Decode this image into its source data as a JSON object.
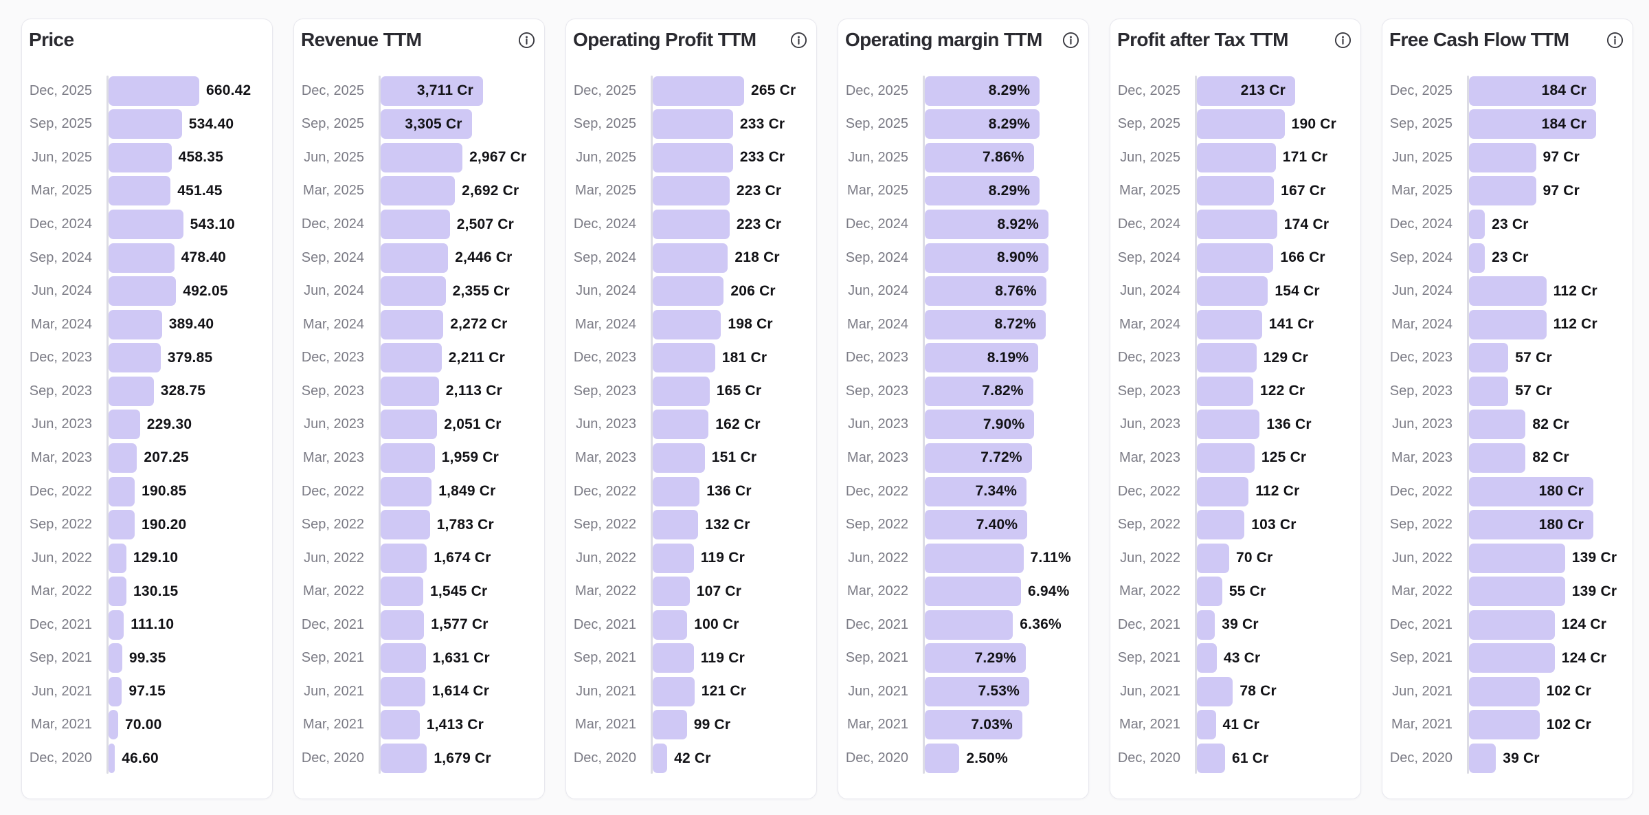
{
  "page": {
    "background": "#fafafb",
    "card_background": "#ffffff",
    "card_border": "#e8e8ee",
    "bar_color": "#cfc8f5",
    "axis_color": "#dcdce4",
    "period_color": "#7b7b85",
    "value_color": "#121216",
    "title_color": "#2a2a30",
    "info_icon": "info-circle"
  },
  "chart_data": [
    {
      "type": "bar",
      "orientation": "horizontal",
      "title": "Price",
      "has_info_icon": false,
      "unit": "",
      "xlim": [
        0,
        660.42
      ],
      "grid": false,
      "legend": "none",
      "categories": [
        "Dec, 2025",
        "Sep, 2025",
        "Jun, 2025",
        "Mar, 2025",
        "Dec, 2024",
        "Sep, 2024",
        "Jun, 2024",
        "Mar, 2024",
        "Dec, 2023",
        "Sep, 2023",
        "Jun, 2023",
        "Mar, 2023",
        "Dec, 2022",
        "Sep, 2022",
        "Jun, 2022",
        "Mar, 2022",
        "Dec, 2021",
        "Sep, 2021",
        "Jun, 2021",
        "Mar, 2021",
        "Dec, 2020"
      ],
      "values": [
        660.42,
        534.4,
        458.35,
        451.45,
        543.1,
        478.4,
        492.05,
        389.4,
        379.85,
        328.75,
        229.3,
        207.25,
        190.85,
        190.2,
        129.1,
        130.15,
        111.1,
        99.35,
        97.15,
        70.0,
        46.6
      ],
      "labels": [
        "660.42",
        "534.40",
        "458.35",
        "451.45",
        "543.10",
        "478.40",
        "492.05",
        "389.40",
        "379.85",
        "328.75",
        "229.30",
        "207.25",
        "190.85",
        "190.20",
        "129.10",
        "130.15",
        "111.10",
        "99.35",
        "97.15",
        "70.00",
        "46.60"
      ],
      "labels_inside": [
        false,
        false,
        false,
        false,
        false,
        false,
        false,
        false,
        false,
        false,
        false,
        false,
        false,
        false,
        false,
        false,
        false,
        false,
        false,
        false,
        false
      ]
    },
    {
      "type": "bar",
      "orientation": "horizontal",
      "title": "Revenue TTM",
      "has_info_icon": true,
      "unit": "Cr",
      "xlim": [
        0,
        3711
      ],
      "grid": false,
      "legend": "none",
      "categories": [
        "Dec, 2025",
        "Sep, 2025",
        "Jun, 2025",
        "Mar, 2025",
        "Dec, 2024",
        "Sep, 2024",
        "Jun, 2024",
        "Mar, 2024",
        "Dec, 2023",
        "Sep, 2023",
        "Jun, 2023",
        "Mar, 2023",
        "Dec, 2022",
        "Sep, 2022",
        "Jun, 2022",
        "Mar, 2022",
        "Dec, 2021",
        "Sep, 2021",
        "Jun, 2021",
        "Mar, 2021",
        "Dec, 2020"
      ],
      "values": [
        3711,
        3305,
        2967,
        2692,
        2507,
        2446,
        2355,
        2272,
        2211,
        2113,
        2051,
        1959,
        1849,
        1783,
        1674,
        1545,
        1577,
        1631,
        1614,
        1413,
        1679
      ],
      "labels": [
        "3,711 Cr",
        "3,305 Cr",
        "2,967 Cr",
        "2,692 Cr",
        "2,507 Cr",
        "2,446 Cr",
        "2,355 Cr",
        "2,272 Cr",
        "2,211 Cr",
        "2,113 Cr",
        "2,051 Cr",
        "1,959 Cr",
        "1,849 Cr",
        "1,783 Cr",
        "1,674 Cr",
        "1,545 Cr",
        "1,577 Cr",
        "1,631 Cr",
        "1,614 Cr",
        "1,413 Cr",
        "1,679 Cr"
      ],
      "labels_inside": [
        true,
        true,
        false,
        false,
        false,
        false,
        false,
        false,
        false,
        false,
        false,
        false,
        false,
        false,
        false,
        false,
        false,
        false,
        false,
        false,
        false
      ]
    },
    {
      "type": "bar",
      "orientation": "horizontal",
      "title": "Operating Profit TTM",
      "has_info_icon": true,
      "unit": "Cr",
      "xlim": [
        0,
        265
      ],
      "grid": false,
      "legend": "none",
      "categories": [
        "Dec, 2025",
        "Sep, 2025",
        "Jun, 2025",
        "Mar, 2025",
        "Dec, 2024",
        "Sep, 2024",
        "Jun, 2024",
        "Mar, 2024",
        "Dec, 2023",
        "Sep, 2023",
        "Jun, 2023",
        "Mar, 2023",
        "Dec, 2022",
        "Sep, 2022",
        "Jun, 2022",
        "Mar, 2022",
        "Dec, 2021",
        "Sep, 2021",
        "Jun, 2021",
        "Mar, 2021",
        "Dec, 2020"
      ],
      "values": [
        265,
        233,
        233,
        223,
        223,
        218,
        206,
        198,
        181,
        165,
        162,
        151,
        136,
        132,
        119,
        107,
        100,
        119,
        121,
        99,
        42
      ],
      "labels": [
        "265 Cr",
        "233 Cr",
        "233 Cr",
        "223 Cr",
        "223 Cr",
        "218 Cr",
        "206 Cr",
        "198 Cr",
        "181 Cr",
        "165 Cr",
        "162 Cr",
        "151 Cr",
        "136 Cr",
        "132 Cr",
        "119 Cr",
        "107 Cr",
        "100 Cr",
        "119 Cr",
        "121 Cr",
        "99 Cr",
        "42 Cr"
      ],
      "labels_inside": [
        false,
        false,
        false,
        false,
        false,
        false,
        false,
        false,
        false,
        false,
        false,
        false,
        false,
        false,
        false,
        false,
        false,
        false,
        false,
        false,
        false
      ]
    },
    {
      "type": "bar",
      "orientation": "horizontal",
      "title": "Operating margin TTM",
      "has_info_icon": true,
      "unit": "%",
      "xlim": [
        0,
        8.92
      ],
      "grid": false,
      "legend": "none",
      "categories": [
        "Dec, 2025",
        "Sep, 2025",
        "Jun, 2025",
        "Mar, 2025",
        "Dec, 2024",
        "Sep, 2024",
        "Jun, 2024",
        "Mar, 2024",
        "Dec, 2023",
        "Sep, 2023",
        "Jun, 2023",
        "Mar, 2023",
        "Dec, 2022",
        "Sep, 2022",
        "Jun, 2022",
        "Mar, 2022",
        "Dec, 2021",
        "Sep, 2021",
        "Jun, 2021",
        "Mar, 2021",
        "Dec, 2020"
      ],
      "values": [
        8.29,
        8.29,
        7.86,
        8.29,
        8.92,
        8.9,
        8.76,
        8.72,
        8.19,
        7.82,
        7.9,
        7.72,
        7.34,
        7.4,
        7.11,
        6.94,
        6.36,
        7.29,
        7.53,
        7.03,
        2.5
      ],
      "labels": [
        "8.29%",
        "8.29%",
        "7.86%",
        "8.29%",
        "8.92%",
        "8.90%",
        "8.76%",
        "8.72%",
        "8.19%",
        "7.82%",
        "7.90%",
        "7.72%",
        "7.34%",
        "7.40%",
        "7.11%",
        "6.94%",
        "6.36%",
        "7.29%",
        "7.53%",
        "7.03%",
        "2.50%"
      ],
      "labels_inside": [
        true,
        true,
        true,
        true,
        true,
        true,
        true,
        true,
        true,
        true,
        true,
        true,
        true,
        true,
        false,
        false,
        false,
        true,
        true,
        true,
        false
      ]
    },
    {
      "type": "bar",
      "orientation": "horizontal",
      "title": "Profit after Tax TTM",
      "has_info_icon": true,
      "unit": "Cr",
      "xlim": [
        0,
        213
      ],
      "grid": false,
      "legend": "none",
      "categories": [
        "Dec, 2025",
        "Sep, 2025",
        "Jun, 2025",
        "Mar, 2025",
        "Dec, 2024",
        "Sep, 2024",
        "Jun, 2024",
        "Mar, 2024",
        "Dec, 2023",
        "Sep, 2023",
        "Jun, 2023",
        "Mar, 2023",
        "Dec, 2022",
        "Sep, 2022",
        "Jun, 2022",
        "Mar, 2022",
        "Dec, 2021",
        "Sep, 2021",
        "Jun, 2021",
        "Mar, 2021",
        "Dec, 2020"
      ],
      "values": [
        213,
        190,
        171,
        167,
        174,
        166,
        154,
        141,
        129,
        122,
        136,
        125,
        112,
        103,
        70,
        55,
        39,
        43,
        78,
        41,
        61
      ],
      "labels": [
        "213 Cr",
        "190 Cr",
        "171 Cr",
        "167 Cr",
        "174 Cr",
        "166 Cr",
        "154 Cr",
        "141 Cr",
        "129 Cr",
        "122 Cr",
        "136 Cr",
        "125 Cr",
        "112 Cr",
        "103 Cr",
        "70 Cr",
        "55 Cr",
        "39 Cr",
        "43 Cr",
        "78 Cr",
        "41 Cr",
        "61 Cr"
      ],
      "labels_inside": [
        true,
        false,
        false,
        false,
        false,
        false,
        false,
        false,
        false,
        false,
        false,
        false,
        false,
        false,
        false,
        false,
        false,
        false,
        false,
        false,
        false
      ]
    },
    {
      "type": "bar",
      "orientation": "horizontal",
      "title": "Free Cash Flow TTM",
      "has_info_icon": true,
      "unit": "Cr",
      "xlim": [
        0,
        184
      ],
      "grid": false,
      "legend": "none",
      "categories": [
        "Dec, 2025",
        "Sep, 2025",
        "Jun, 2025",
        "Mar, 2025",
        "Dec, 2024",
        "Sep, 2024",
        "Jun, 2024",
        "Mar, 2024",
        "Dec, 2023",
        "Sep, 2023",
        "Jun, 2023",
        "Mar, 2023",
        "Dec, 2022",
        "Sep, 2022",
        "Jun, 2022",
        "Mar, 2022",
        "Dec, 2021",
        "Sep, 2021",
        "Jun, 2021",
        "Mar, 2021",
        "Dec, 2020"
      ],
      "values": [
        184,
        184,
        97,
        97,
        23,
        23,
        112,
        112,
        57,
        57,
        82,
        82,
        180,
        180,
        139,
        139,
        124,
        124,
        102,
        102,
        39
      ],
      "labels": [
        "184 Cr",
        "184 Cr",
        "97 Cr",
        "97 Cr",
        "23 Cr",
        "23 Cr",
        "112 Cr",
        "112 Cr",
        "57 Cr",
        "57 Cr",
        "82 Cr",
        "82 Cr",
        "180 Cr",
        "180 Cr",
        "139 Cr",
        "139 Cr",
        "124 Cr",
        "124 Cr",
        "102 Cr",
        "102 Cr",
        "39 Cr"
      ],
      "labels_inside": [
        true,
        true,
        false,
        false,
        false,
        false,
        false,
        false,
        false,
        false,
        false,
        false,
        true,
        true,
        false,
        false,
        false,
        false,
        false,
        false,
        false
      ]
    }
  ]
}
